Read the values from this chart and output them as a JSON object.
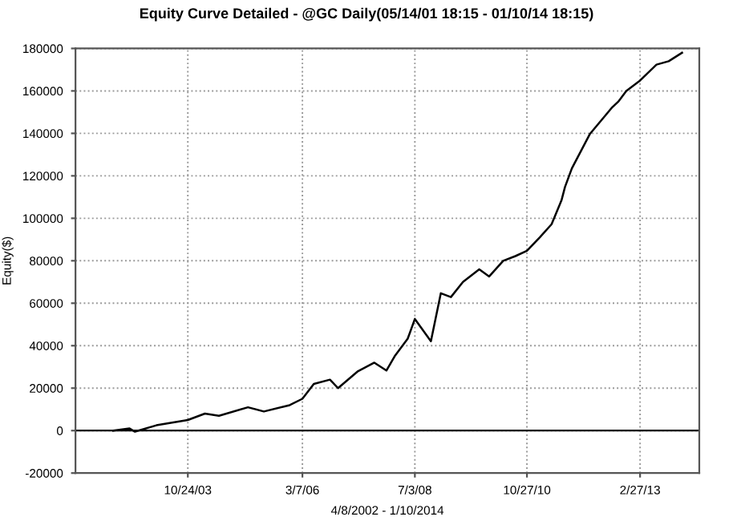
{
  "chart_data": {
    "type": "line",
    "title": "Equity Curve Detailed - @GC Daily(05/14/01 18:15 - 01/10/14 18:15)",
    "xlabel": "4/8/2002 - 1/10/2014",
    "ylabel": "Equity($)",
    "x": [
      "2002-04-08",
      "2002-08-10",
      "2002-09-20",
      "2003-03-01",
      "2003-10-24",
      "2004-03-01",
      "2004-06-15",
      "2005-01-20",
      "2005-05-20",
      "2005-12-01",
      "2006-03-07",
      "2006-06-01",
      "2006-10-01",
      "2006-12-01",
      "2007-05-01",
      "2007-09-01",
      "2007-12-01",
      "2008-02-01",
      "2008-05-10",
      "2008-07-03",
      "2008-11-01",
      "2009-01-15",
      "2009-04-01",
      "2009-07-01",
      "2009-11-01",
      "2010-01-15",
      "2010-05-01",
      "2010-08-01",
      "2010-10-27",
      "2011-02-01",
      "2011-05-01",
      "2011-07-15",
      "2011-08-10",
      "2011-10-01",
      "2012-02-15",
      "2012-08-01",
      "2012-09-15",
      "2012-11-15",
      "2013-02-27",
      "2013-07-01",
      "2013-10-01",
      "2014-01-10"
    ],
    "series": [
      {
        "color": "#000000",
        "values": [
          0,
          1000,
          -500,
          2500,
          5000,
          8000,
          7000,
          11000,
          9000,
          12000,
          15000,
          22000,
          24000,
          20000,
          28000,
          32000,
          28300,
          35000,
          43300,
          52600,
          42100,
          64700,
          62900,
          70000,
          76000,
          72600,
          80000,
          82200,
          84700,
          91000,
          97200,
          108500,
          114700,
          123500,
          139800,
          152300,
          154900,
          160000,
          164900,
          172400,
          174000,
          178000
        ]
      }
    ],
    "xlim": [
      "2001-06-28",
      "2014-05-20"
    ],
    "ylim": [
      -20000,
      180000
    ],
    "xticks": [
      {
        "value": "2003-10-24",
        "label": "10/24/03"
      },
      {
        "value": "2006-03-07",
        "label": "3/7/06"
      },
      {
        "value": "2008-07-03",
        "label": "7/3/08"
      },
      {
        "value": "2010-10-27",
        "label": "10/27/10"
      },
      {
        "value": "2013-02-27",
        "label": "2/27/13"
      }
    ],
    "yticks": [
      -20000,
      0,
      20000,
      40000,
      60000,
      80000,
      100000,
      120000,
      140000,
      160000,
      180000
    ],
    "ref_lines": [
      {
        "axis": "y",
        "value": 0,
        "color": "#000000"
      }
    ],
    "grid": true,
    "line_style": "solid",
    "marker": "none"
  }
}
